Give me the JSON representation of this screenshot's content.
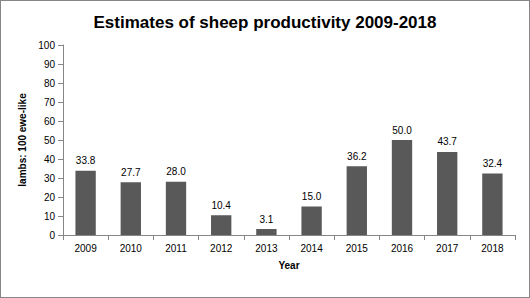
{
  "chart_data": {
    "type": "bar",
    "title": "Estimates of sheep productivity 2009-2018",
    "x_label": "Year",
    "y_label": "lambs: 100 ewe-like",
    "categories": [
      "2009",
      "2010",
      "2011",
      "2012",
      "2013",
      "2014",
      "2015",
      "2016",
      "2017",
      "2018"
    ],
    "values": [
      33.8,
      27.7,
      28.0,
      10.4,
      3.1,
      15.0,
      36.2,
      50.0,
      43.7,
      32.4
    ],
    "value_labels": [
      "33.8",
      "27.7",
      "28.0",
      "10.4",
      "3.1",
      "15.0",
      "36.2",
      "50.0",
      "43.7",
      "32.4"
    ],
    "color": "#595959",
    "ylim": [
      0,
      100
    ],
    "yticks": [
      0,
      10,
      20,
      30,
      40,
      50,
      60,
      70,
      80,
      90,
      100
    ],
    "grid": false,
    "data_labels": true
  }
}
